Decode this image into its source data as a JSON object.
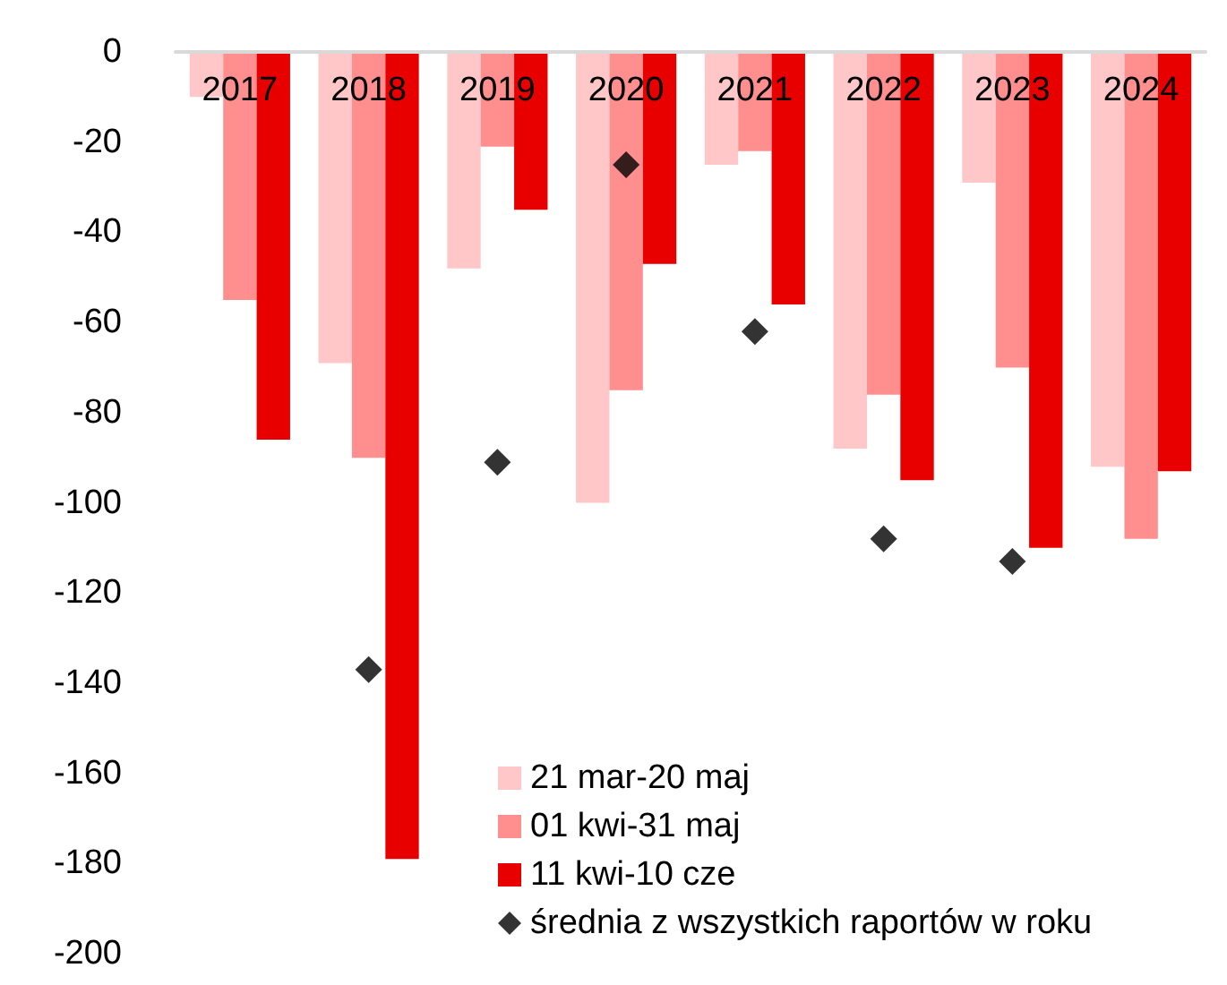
{
  "chart_data": {
    "type": "bar",
    "categories": [
      "2017",
      "2018",
      "2019",
      "2020",
      "2021",
      "2022",
      "2023",
      "2024"
    ],
    "series": [
      {
        "name": "21 mar-20 maj",
        "color": "#ffc7c7",
        "values": [
          -10,
          -69,
          -48,
          -100,
          -25,
          -88,
          -29,
          -92
        ]
      },
      {
        "name": "01 kwi-31 maj",
        "color": "#ff8f8f",
        "values": [
          -55,
          -90,
          -21,
          -75,
          -22,
          -76,
          -70,
          -108
        ]
      },
      {
        "name": "11 kwi-10 cze",
        "color": "#e80000",
        "values": [
          -86,
          -179,
          -35,
          -47,
          -56,
          -95,
          -110,
          -93
        ]
      },
      {
        "name": "średnia z wszystkich raportów w roku",
        "type": "scatter",
        "color": "#000000",
        "marker": "diamond",
        "values": [
          null,
          -137,
          -91,
          -25,
          -62,
          -108,
          -113,
          null
        ]
      }
    ],
    "ylim": [
      -200,
      0
    ],
    "yticks": [
      0,
      -20,
      -40,
      -60,
      -80,
      -100,
      -120,
      -140,
      -160,
      -180,
      -200
    ],
    "grid": false,
    "legend": "bottom"
  }
}
